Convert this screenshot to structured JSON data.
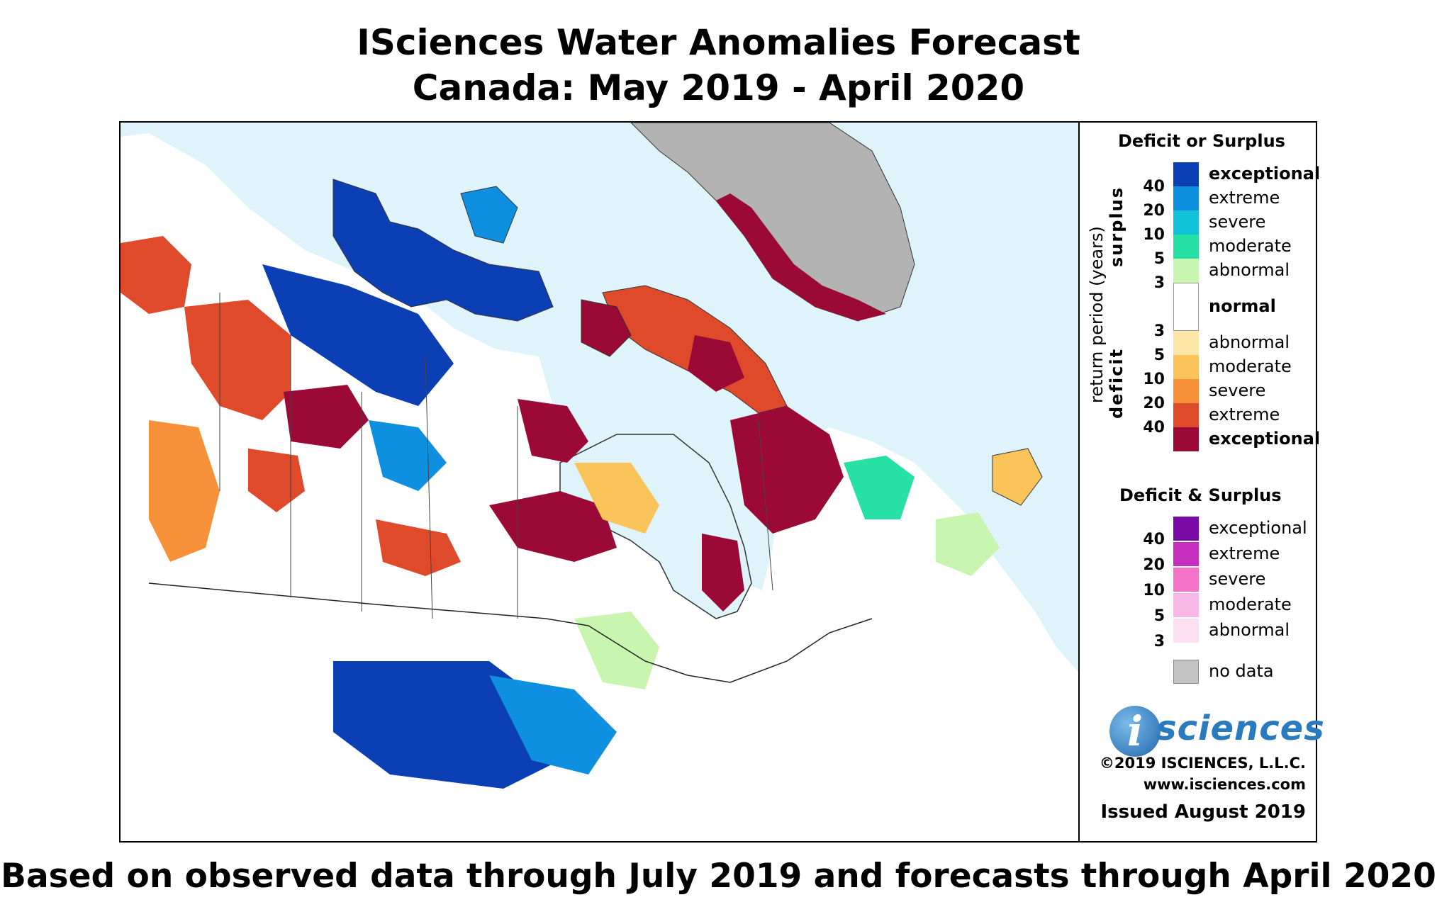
{
  "title": {
    "line1": "ISciences Water Anomalies Forecast",
    "line2": "Canada: May 2019 - April 2020"
  },
  "footer": "Based on observed data through July 2019 and forecasts through April 2020",
  "legend": {
    "deficit_or_surplus": {
      "heading": "Deficit or Surplus",
      "axis_label": "return period (years)",
      "surplus_label": "surplus",
      "deficit_label": "deficit",
      "surplus_items": [
        {
          "label": "exceptional",
          "color": "#0b3fb3",
          "bold": true
        },
        {
          "label": "extreme",
          "color": "#0f8fe0",
          "bold": false
        },
        {
          "label": "severe",
          "color": "#12c2d8",
          "bold": false
        },
        {
          "label": "moderate",
          "color": "#27e0a3",
          "bold": false
        },
        {
          "label": "abnormal",
          "color": "#c8f6b0",
          "bold": false
        }
      ],
      "normal": {
        "label": "normal",
        "color": "#ffffff"
      },
      "deficit_items": [
        {
          "label": "abnormal",
          "color": "#fde7a8",
          "bold": false
        },
        {
          "label": "moderate",
          "color": "#fbc45a",
          "bold": false
        },
        {
          "label": "severe",
          "color": "#f6913a",
          "bold": false
        },
        {
          "label": "extreme",
          "color": "#de4a2a",
          "bold": false
        },
        {
          "label": "exceptional",
          "color": "#9b0a36",
          "bold": true
        }
      ],
      "surplus_ticks": [
        "40",
        "20",
        "10",
        "5",
        "3"
      ],
      "deficit_ticks": [
        "3",
        "5",
        "10",
        "20",
        "40"
      ]
    },
    "deficit_and_surplus": {
      "heading": "Deficit & Surplus",
      "items": [
        {
          "label": "exceptional",
          "color": "#7a0aa6"
        },
        {
          "label": "extreme",
          "color": "#c62fbd"
        },
        {
          "label": "severe",
          "color": "#f472c8"
        },
        {
          "label": "moderate",
          "color": "#f8b8e6"
        },
        {
          "label": "abnormal",
          "color": "#fde0f2"
        }
      ],
      "ticks": [
        "40",
        "20",
        "10",
        "5",
        "3"
      ]
    },
    "no_data": {
      "label": "no data",
      "color": "#c4c4c4"
    },
    "logo": {
      "letter": "i",
      "word": "sciences"
    },
    "copyright": "©2019 ISCIENCES, L.L.C.",
    "website": "www.isciences.com",
    "issued": "Issued August 2019"
  },
  "map_colors": {
    "water": "#dff3fb",
    "land_normal": "#ffffff",
    "greenland": "#b3b3b3",
    "exceptional_deficit": "#9b0a36",
    "exceptional_surplus": "#0b3fb3"
  }
}
